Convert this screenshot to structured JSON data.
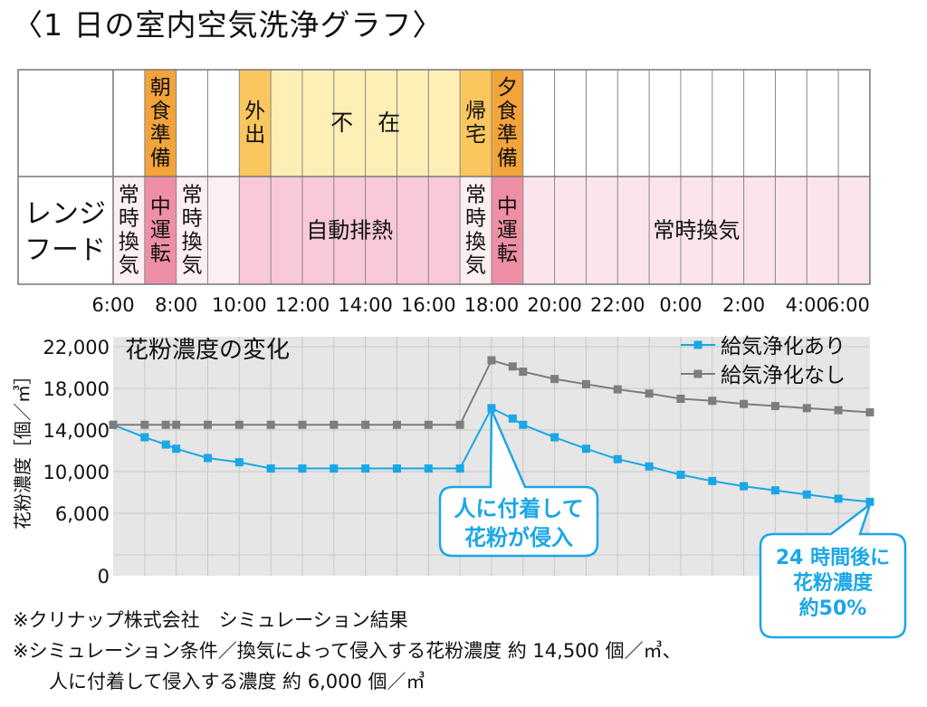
{
  "title": "〈1 日の室内空気洗浄グラフ〉",
  "schedule": {
    "row_label": [
      "レンジ",
      "フード"
    ],
    "top_row": [
      {
        "from": 0,
        "to": 1,
        "label": [],
        "color": "#ffffff"
      },
      {
        "from": 1,
        "to": 2,
        "label": [
          "朝",
          "食",
          "準",
          "備"
        ],
        "color": "#f2a33a"
      },
      {
        "from": 2,
        "to": 4,
        "label": [],
        "color": "#ffffff"
      },
      {
        "from": 4,
        "to": 5,
        "label": [
          "外",
          "出"
        ],
        "color": "#f9c75e"
      },
      {
        "from": 5,
        "to": 11,
        "label": [
          "不",
          "在"
        ],
        "color": "#fdefb6"
      },
      {
        "from": 11,
        "to": 12,
        "label": [
          "帰",
          "宅"
        ],
        "color": "#f9c75e"
      },
      {
        "from": 12,
        "to": 13,
        "label": [
          "夕",
          "食",
          "準",
          "備"
        ],
        "color": "#f2a33a"
      },
      {
        "from": 13,
        "to": 24,
        "label": [],
        "color": "#ffffff"
      }
    ],
    "bottom_row": [
      {
        "from": 0,
        "to": 1,
        "label": [
          "常",
          "時",
          "換",
          "気"
        ],
        "color": "#fdeef2"
      },
      {
        "from": 1,
        "to": 2,
        "label": [
          "中",
          "運",
          "転"
        ],
        "color": "#ef8fa6"
      },
      {
        "from": 2,
        "to": 4,
        "label": [
          "常",
          "時",
          "換",
          "気"
        ],
        "color": "#fdeef2"
      },
      {
        "from": 4,
        "to": 11,
        "label": [
          "自動排熱"
        ],
        "color": "#f8c9d6"
      },
      {
        "from": 11,
        "to": 12,
        "label": [
          "常",
          "時",
          "換",
          "気"
        ],
        "color": "#fdeef2"
      },
      {
        "from": 12,
        "to": 13,
        "label": [
          "中",
          "運",
          "転"
        ],
        "color": "#ef8fa6"
      },
      {
        "from": 13,
        "to": 24,
        "label": [
          "常時換気"
        ],
        "color": "#fce4ec"
      }
    ]
  },
  "colors": {
    "with_purification": "#1aa7e6",
    "without_purification": "#7d7d7d",
    "plot_background": "#e6e6e6",
    "callout_fill": "#ffffff"
  },
  "chart_data": {
    "type": "line",
    "title": "花粉濃度の変化",
    "xlabel": "",
    "ylabel": "花粉濃度［個／㎥］",
    "xlim": [
      0,
      24
    ],
    "ylim": [
      0,
      22000
    ],
    "grid": true,
    "legend": "top-right",
    "x_tick_labels": [
      "6:00",
      "8:00",
      "10:00",
      "12:00",
      "14:00",
      "16:00",
      "18:00",
      "20:00",
      "22:00",
      "0:00",
      "2:00",
      "4:00",
      "6:00"
    ],
    "y_tick_labels": [
      "0",
      "6,000",
      "10,000",
      "14,000",
      "18,000",
      "22,000"
    ],
    "y_tick_values": [
      0,
      6000,
      10000,
      14000,
      18000,
      22000
    ],
    "series": [
      {
        "name": "給気浄化あり",
        "x": [
          0,
          1,
          1.67,
          2,
          3,
          4,
          5,
          6,
          7,
          8,
          9,
          10,
          11,
          12,
          12.67,
          13,
          14,
          15,
          16,
          17,
          18,
          19,
          20,
          21,
          22,
          23,
          24
        ],
        "values": [
          14500,
          13300,
          12600,
          12200,
          11300,
          10900,
          10300,
          10300,
          10300,
          10300,
          10300,
          10300,
          10300,
          16100,
          15100,
          14500,
          13300,
          12200,
          11200,
          10500,
          9700,
          9100,
          8600,
          8200,
          7800,
          7400,
          7100
        ]
      },
      {
        "name": "給気浄化なし",
        "x": [
          0,
          1,
          1.67,
          2,
          3,
          4,
          5,
          6,
          7,
          8,
          9,
          10,
          11,
          12,
          12.67,
          13,
          14,
          15,
          16,
          17,
          18,
          19,
          20,
          21,
          22,
          23,
          24
        ],
        "values": [
          14500,
          14500,
          14500,
          14500,
          14500,
          14500,
          14500,
          14500,
          14500,
          14500,
          14500,
          14500,
          14500,
          20700,
          20100,
          19600,
          18900,
          18400,
          17900,
          17500,
          17000,
          16800,
          16500,
          16300,
          16100,
          15900,
          15700
        ]
      }
    ],
    "annotations": [
      {
        "lines": [
          "人に付着して",
          "花粉が侵入"
        ],
        "pointer_x": 12,
        "pointer_value": 16100
      },
      {
        "lines": [
          "24 時間後に",
          "花粉濃度",
          "約50%"
        ],
        "pointer_x": 24,
        "pointer_value": 7100
      }
    ]
  },
  "footnotes": [
    "※クリナップ株式会社　シミュレーション結果",
    "※シミュレーション条件／換気によって侵入する花粉濃度 約 14,500 個／㎥、",
    "人に付着して侵入する濃度  約 6,000 個／㎥"
  ]
}
